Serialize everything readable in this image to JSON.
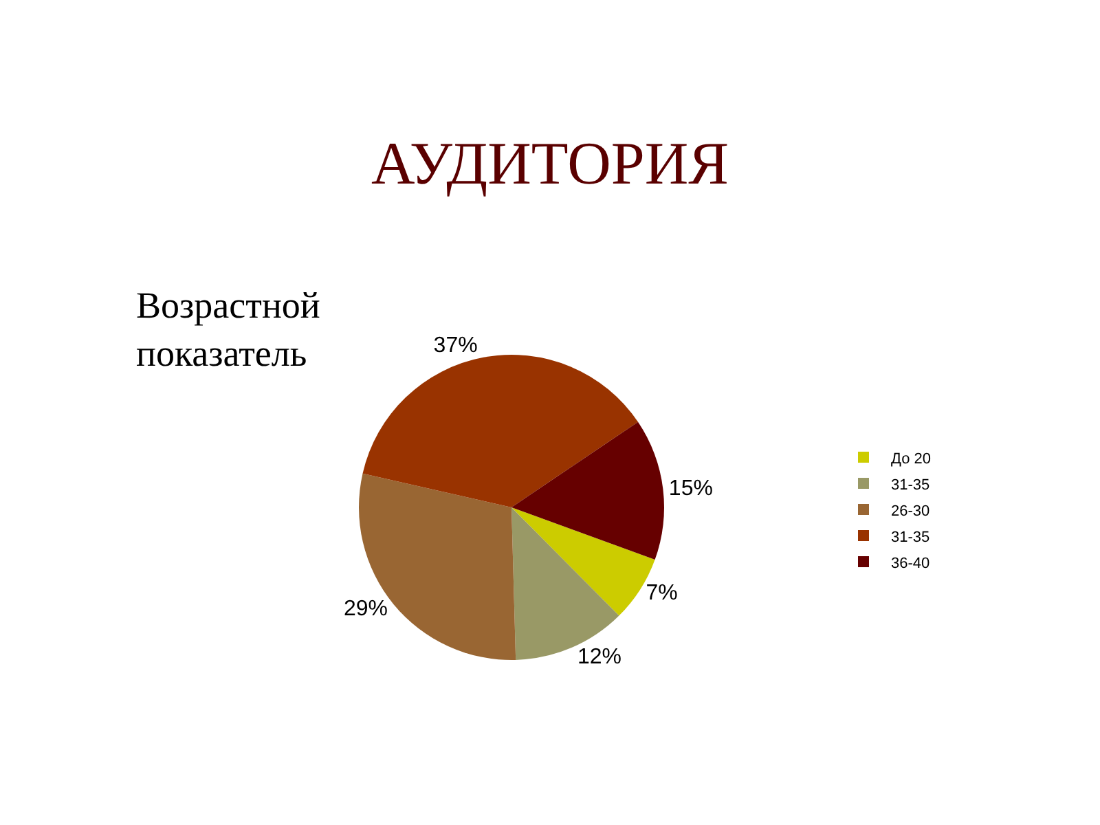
{
  "chart_data": {
    "type": "pie",
    "title": "АУДИТОРИЯ",
    "subtitle": "Возрастной\nпоказатель",
    "categories": [
      "До 20",
      "31-35",
      "26-30",
      "31-35",
      "36-40"
    ],
    "values": [
      7,
      12,
      29,
      37,
      15
    ],
    "colors": [
      "#cccc00",
      "#999966",
      "#996633",
      "#993300",
      "#660000"
    ],
    "value_labels": [
      "7%",
      "12%",
      "29%",
      "37%",
      "15%"
    ],
    "legend": "right"
  }
}
